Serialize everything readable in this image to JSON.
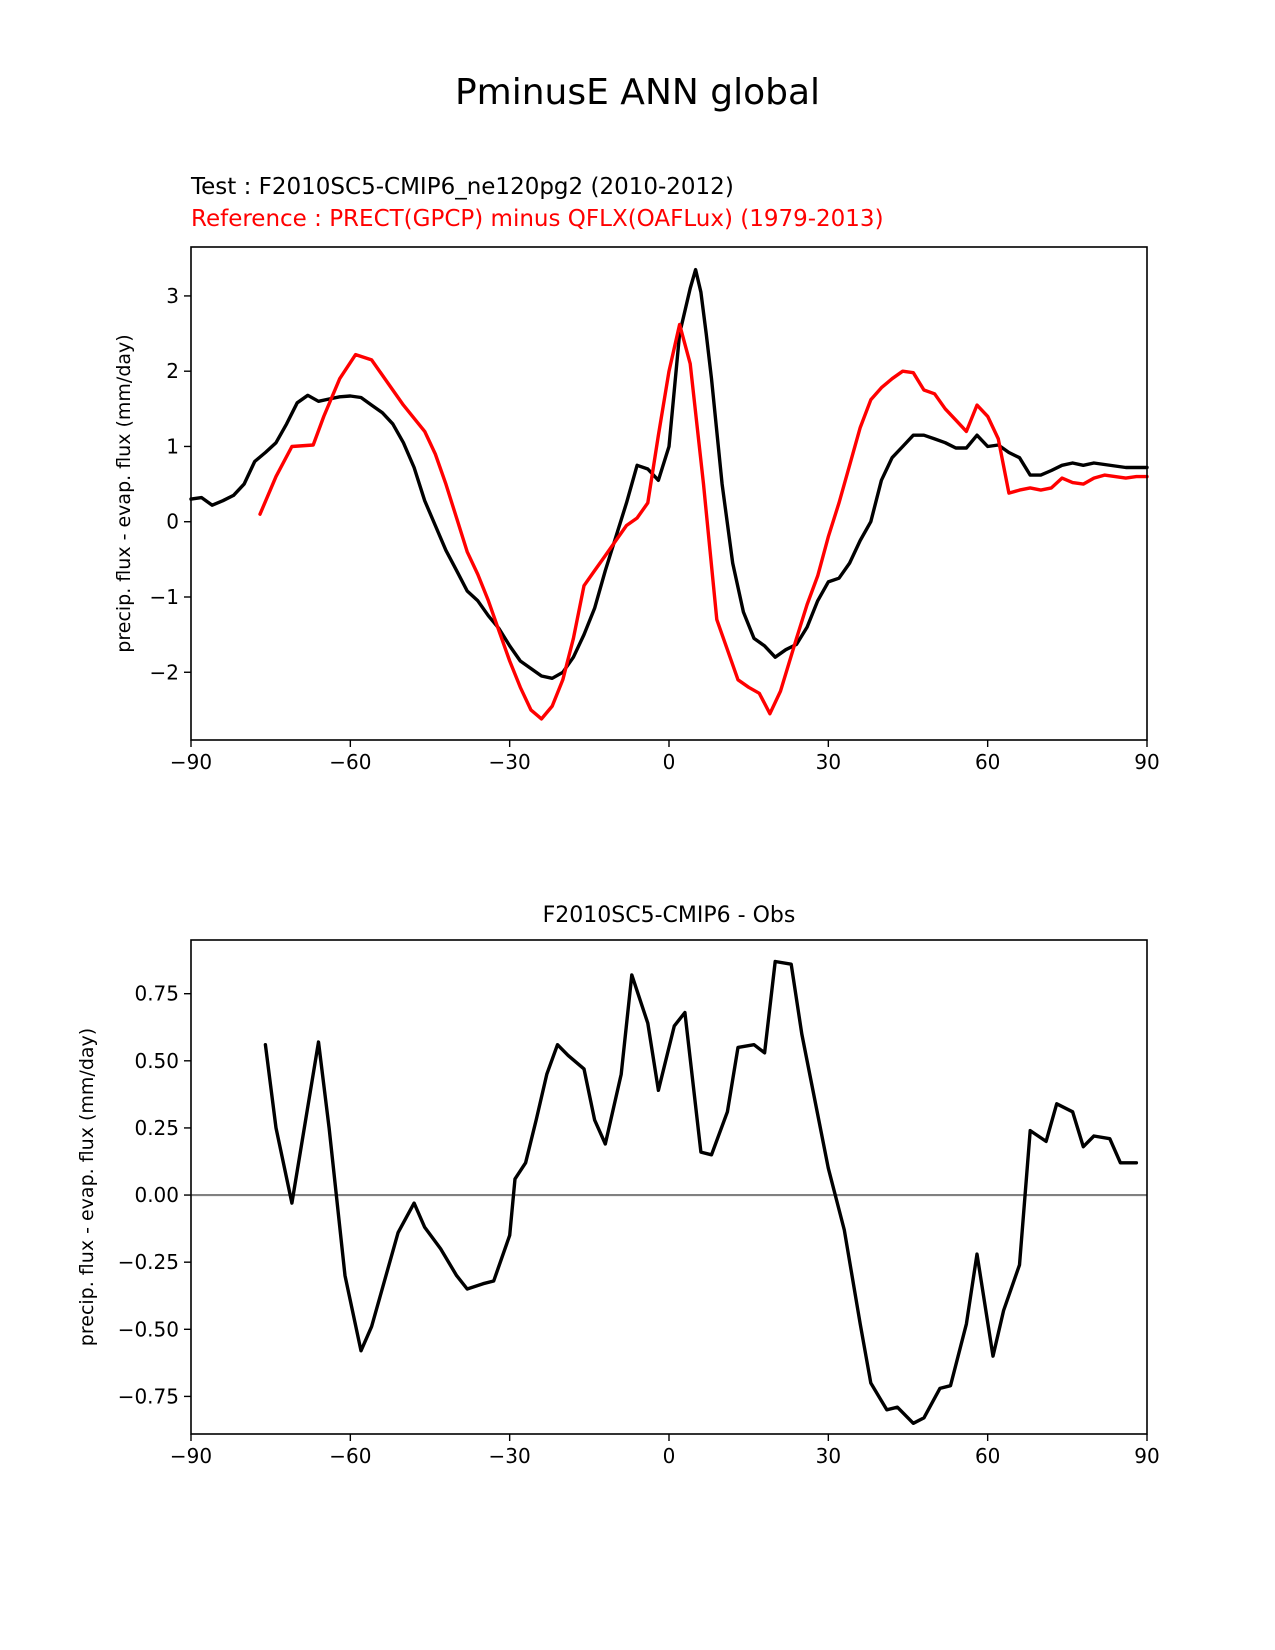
{
  "figure": {
    "suptitle": "PminusE ANN global"
  },
  "chart_data": [
    {
      "type": "line",
      "title_test": "Test : F2010SC5-CMIP6_ne120pg2 (2010-2012)",
      "title_ref": "Reference : PRECT(GPCP) minus QFLX(OAFLux) (1979-2013)",
      "xlabel": "",
      "ylabel": "precip. flux - evap. flux (mm/day)",
      "xlim": [
        -90,
        90
      ],
      "ylim": [
        -2.9,
        3.65
      ],
      "xticks": [
        -90,
        -60,
        -30,
        0,
        30,
        60,
        90
      ],
      "xtick_labels": [
        "−90",
        "−60",
        "−30",
        "0",
        "30",
        "60",
        "90"
      ],
      "yticks": [
        -2,
        -1,
        0,
        1,
        2,
        3
      ],
      "ytick_labels": [
        "−2",
        "−1",
        "0",
        "1",
        "2",
        "3"
      ],
      "series": [
        {
          "name": "Test",
          "color": "#000000",
          "x": [
            -90,
            -88,
            -86,
            -84,
            -82,
            -80,
            -78,
            -76,
            -74,
            -72,
            -70,
            -68,
            -66,
            -64,
            -62,
            -60,
            -58,
            -56,
            -54,
            -52,
            -50,
            -48,
            -46,
            -44,
            -42,
            -40,
            -38,
            -36,
            -34,
            -32,
            -30,
            -28,
            -26,
            -24,
            -22,
            -20,
            -18,
            -16,
            -14,
            -12,
            -10,
            -8,
            -6,
            -4,
            -2,
            0,
            2,
            4,
            5,
            6,
            7,
            8,
            10,
            12,
            14,
            16,
            18,
            20,
            22,
            24,
            26,
            28,
            30,
            32,
            34,
            36,
            38,
            40,
            42,
            44,
            46,
            48,
            50,
            52,
            54,
            56,
            58,
            60,
            62,
            64,
            66,
            68,
            70,
            72,
            74,
            76,
            78,
            80,
            82,
            84,
            86,
            88,
            90
          ],
          "y": [
            0.3,
            0.32,
            0.22,
            0.28,
            0.35,
            0.5,
            0.8,
            0.92,
            1.05,
            1.3,
            1.58,
            1.68,
            1.6,
            1.63,
            1.66,
            1.67,
            1.65,
            1.55,
            1.45,
            1.3,
            1.05,
            0.72,
            0.28,
            -0.05,
            -0.38,
            -0.65,
            -0.92,
            -1.05,
            -1.25,
            -1.42,
            -1.65,
            -1.85,
            -1.95,
            -2.05,
            -2.08,
            -2.0,
            -1.8,
            -1.5,
            -1.15,
            -0.65,
            -0.2,
            0.25,
            0.75,
            0.7,
            0.55,
            1.0,
            2.5,
            3.1,
            3.35,
            3.05,
            2.5,
            1.9,
            0.5,
            -0.55,
            -1.2,
            -1.55,
            -1.65,
            -1.8,
            -1.7,
            -1.63,
            -1.4,
            -1.05,
            -0.8,
            -0.75,
            -0.55,
            -0.25,
            0.0,
            0.55,
            0.85,
            1.0,
            1.15,
            1.15,
            1.1,
            1.05,
            0.98,
            0.98,
            1.15,
            1.0,
            1.02,
            0.92,
            0.85,
            0.62,
            0.62,
            0.68,
            0.75,
            0.78,
            0.75,
            0.78,
            0.76,
            0.74,
            0.72,
            0.72,
            0.72
          ]
        },
        {
          "name": "Reference",
          "color": "#ff0000",
          "x": [
            -77,
            -74,
            -71,
            -67,
            -65,
            -62,
            -59,
            -56,
            -53,
            -50,
            -46,
            -44,
            -42,
            -40,
            -38,
            -36,
            -34,
            -32,
            -30,
            -28,
            -26,
            -24,
            -22,
            -20,
            -18,
            -16,
            -14,
            -12,
            -10,
            -8,
            -6,
            -4,
            -2,
            0,
            2,
            4,
            6.5,
            9,
            11,
            13,
            15,
            17,
            19,
            21,
            24,
            26,
            28,
            30,
            32,
            34,
            36,
            38,
            40,
            42,
            44,
            46,
            48,
            50,
            52,
            54,
            56,
            58,
            60,
            62,
            64,
            66,
            68,
            70,
            72,
            74,
            76,
            78,
            80,
            82,
            84,
            86,
            88,
            90
          ],
          "y": [
            0.1,
            0.6,
            1.0,
            1.02,
            1.4,
            1.9,
            2.22,
            2.15,
            1.85,
            1.55,
            1.2,
            0.9,
            0.5,
            0.05,
            -0.4,
            -0.7,
            -1.05,
            -1.45,
            -1.85,
            -2.2,
            -2.5,
            -2.62,
            -2.45,
            -2.1,
            -1.55,
            -0.85,
            -0.65,
            -0.45,
            -0.25,
            -0.05,
            0.05,
            0.25,
            1.15,
            2.0,
            2.62,
            2.1,
            0.5,
            -1.3,
            -1.7,
            -2.1,
            -2.2,
            -2.28,
            -2.55,
            -2.25,
            -1.55,
            -1.1,
            -0.72,
            -0.2,
            0.25,
            0.75,
            1.25,
            1.62,
            1.78,
            1.9,
            2.0,
            1.98,
            1.75,
            1.7,
            1.5,
            1.35,
            1.2,
            1.55,
            1.4,
            1.1,
            0.38,
            0.42,
            0.45,
            0.42,
            0.45,
            0.58,
            0.52,
            0.5,
            0.58,
            0.62,
            0.6,
            0.58,
            0.6,
            0.6
          ]
        }
      ]
    },
    {
      "type": "line",
      "title": "F2010SC5-CMIP6 - Obs",
      "xlabel": "",
      "ylabel": "precip. flux - evap. flux (mm/day)",
      "xlim": [
        -90,
        90
      ],
      "ylim": [
        -0.89,
        0.95
      ],
      "xticks": [
        -90,
        -60,
        -30,
        0,
        30,
        60,
        90
      ],
      "xtick_labels": [
        "−90",
        "−60",
        "−30",
        "0",
        "30",
        "60",
        "90"
      ],
      "yticks": [
        -0.75,
        -0.5,
        -0.25,
        0.0,
        0.25,
        0.5,
        0.75
      ],
      "ytick_labels": [
        "−0.75",
        "−0.50",
        "−0.25",
        "0.00",
        "0.25",
        "0.50",
        "0.75"
      ],
      "zero_line": 0.0,
      "series": [
        {
          "name": "F2010SC5-CMIP6 - Obs",
          "color": "#000000",
          "x": [
            -76,
            -74,
            -71,
            -66,
            -64,
            -61,
            -58,
            -56,
            -53,
            -51,
            -48,
            -46,
            -43,
            -40,
            -38,
            -35,
            -33,
            -30,
            -29,
            -27,
            -25,
            -23,
            -21,
            -19,
            -16,
            -14,
            -12,
            -9,
            -7,
            -4,
            -2,
            1,
            3,
            6,
            8,
            11,
            13,
            16,
            18,
            20,
            23,
            25,
            28,
            30,
            33,
            36,
            38,
            41,
            43,
            46,
            48,
            51,
            53,
            56,
            58,
            61,
            63,
            66,
            68,
            71,
            73,
            76,
            78,
            80,
            83,
            85,
            88
          ],
          "y": [
            0.56,
            0.25,
            -0.03,
            0.57,
            0.25,
            -0.3,
            -0.58,
            -0.49,
            -0.28,
            -0.14,
            -0.03,
            -0.12,
            -0.2,
            -0.3,
            -0.35,
            -0.33,
            -0.32,
            -0.15,
            0.06,
            0.12,
            0.28,
            0.45,
            0.56,
            0.52,
            0.47,
            0.28,
            0.19,
            0.45,
            0.82,
            0.64,
            0.39,
            0.63,
            0.68,
            0.16,
            0.15,
            0.31,
            0.55,
            0.56,
            0.53,
            0.87,
            0.86,
            0.6,
            0.3,
            0.1,
            -0.13,
            -0.48,
            -0.7,
            -0.8,
            -0.79,
            -0.85,
            -0.83,
            -0.72,
            -0.71,
            -0.48,
            -0.22,
            -0.6,
            -0.43,
            -0.26,
            0.24,
            0.2,
            0.34,
            0.31,
            0.18,
            0.22,
            0.21,
            0.12,
            0.12
          ]
        }
      ]
    }
  ]
}
